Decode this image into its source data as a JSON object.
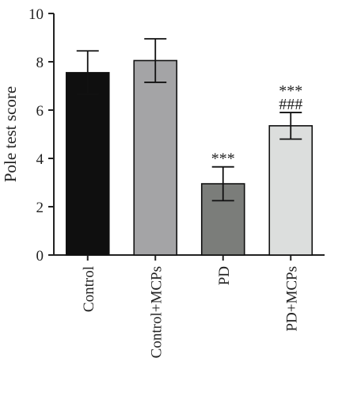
{
  "chart_data": {
    "type": "bar",
    "categories": [
      "Control",
      "Control+MCPs",
      "PD",
      "PD+MCPs"
    ],
    "values": [
      7.55,
      8.05,
      2.95,
      5.35
    ],
    "errors": [
      0.9,
      0.9,
      0.7,
      0.55
    ],
    "annotations": [
      [],
      [],
      [
        "***"
      ],
      [
        "***",
        "###"
      ]
    ],
    "bar_colors": [
      "#0f0f0f",
      "#a4a4a6",
      "#7b7d7a",
      "#dcdedd"
    ],
    "xlabel": "",
    "ylabel": "Pole test score",
    "ylim": [
      0,
      10
    ],
    "yticks": [
      0,
      2,
      4,
      6,
      8,
      10
    ],
    "grid": false,
    "legend": "none"
  }
}
